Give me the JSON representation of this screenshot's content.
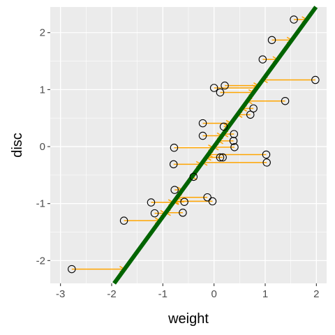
{
  "chart_data": {
    "type": "scatter",
    "title": "",
    "xlabel": "weight",
    "ylabel": "disc",
    "xlim": [
      -3.2,
      2.2
    ],
    "ylim": [
      -2.4,
      2.45
    ],
    "x_ticks": [
      -3,
      -2,
      -1,
      0,
      1,
      2
    ],
    "y_ticks": [
      -2,
      -1,
      0,
      1,
      2
    ],
    "x_tick_labels": [
      "-3",
      "-2",
      "-1",
      "0",
      "1",
      "2"
    ],
    "y_tick_labels": [
      "-2",
      "-1",
      "0",
      "1",
      "2"
    ],
    "grid": true,
    "regression_line": {
      "slope": 1.23,
      "intercept": 0.0,
      "color": "#006400"
    },
    "points": [
      {
        "x": -2.78,
        "y": -2.15
      },
      {
        "x": -1.76,
        "y": -1.3
      },
      {
        "x": -1.23,
        "y": -0.98
      },
      {
        "x": -1.16,
        "y": -1.17
      },
      {
        "x": -0.78,
        "y": -0.02
      },
      {
        "x": -0.79,
        "y": -0.31
      },
      {
        "x": -0.77,
        "y": -0.76
      },
      {
        "x": -0.58,
        "y": -0.97
      },
      {
        "x": -0.61,
        "y": -1.16
      },
      {
        "x": -0.4,
        "y": -0.53
      },
      {
        "x": -0.22,
        "y": 0.41
      },
      {
        "x": -0.22,
        "y": 0.19
      },
      {
        "x": -0.13,
        "y": -0.89
      },
      {
        "x": -0.03,
        "y": -0.96
      },
      {
        "x": 0.0,
        "y": 1.03
      },
      {
        "x": 0.12,
        "y": 0.95
      },
      {
        "x": 0.21,
        "y": 1.07
      },
      {
        "x": 0.12,
        "y": -0.19
      },
      {
        "x": 0.17,
        "y": -0.19
      },
      {
        "x": 0.19,
        "y": 0.35
      },
      {
        "x": 0.39,
        "y": 0.22
      },
      {
        "x": 0.38,
        "y": 0.1
      },
      {
        "x": 0.4,
        "y": -0.01
      },
      {
        "x": 0.71,
        "y": 0.56
      },
      {
        "x": 0.77,
        "y": 0.67
      },
      {
        "x": 0.95,
        "y": 1.53
      },
      {
        "x": 1.13,
        "y": 1.87
      },
      {
        "x": 1.02,
        "y": -0.14
      },
      {
        "x": 1.03,
        "y": -0.28
      },
      {
        "x": 1.39,
        "y": 0.8
      },
      {
        "x": 1.56,
        "y": 2.23
      },
      {
        "x": 1.98,
        "y": 1.17
      }
    ],
    "arrow_color": "#FFA500"
  }
}
